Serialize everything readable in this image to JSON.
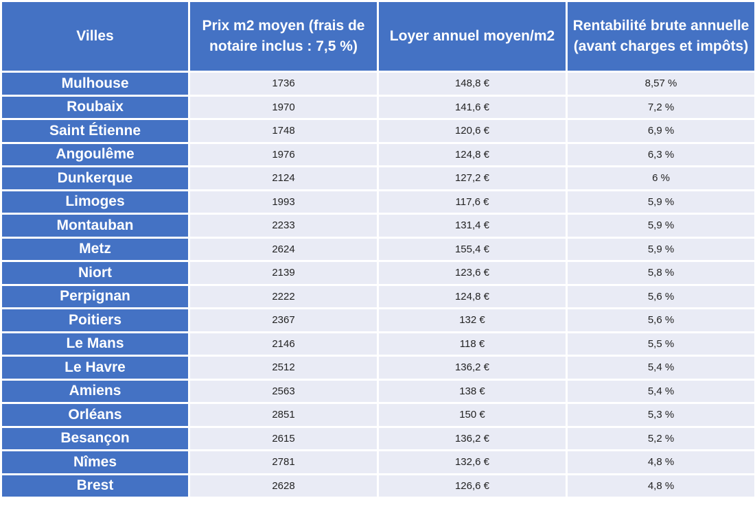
{
  "headers": [
    "Villes",
    "Prix m2 moyen (frais de notaire inclus : 7,5 %)",
    "Loyer annuel moyen/m2",
    "Rentabilité brute annuelle (avant charges et impôts)"
  ],
  "rows": [
    {
      "city": "Mulhouse",
      "price": "1736",
      "rent": "148,8 €",
      "yield": "8,57 %"
    },
    {
      "city": "Roubaix",
      "price": "1970",
      "rent": "141,6 €",
      "yield": "7,2 %"
    },
    {
      "city": "Saint Étienne",
      "price": "1748",
      "rent": "120,6 €",
      "yield": "6,9 %"
    },
    {
      "city": "Angoulême",
      "price": "1976",
      "rent": "124,8 €",
      "yield": "6,3 %"
    },
    {
      "city": "Dunkerque",
      "price": "2124",
      "rent": "127,2 €",
      "yield": "6 %"
    },
    {
      "city": "Limoges",
      "price": "1993",
      "rent": "117,6 €",
      "yield": "5,9 %"
    },
    {
      "city": "Montauban",
      "price": "2233",
      "rent": "131,4 €",
      "yield": "5,9 %"
    },
    {
      "city": "Metz",
      "price": "2624",
      "rent": "155,4 €",
      "yield": "5,9 %"
    },
    {
      "city": "Niort",
      "price": "2139",
      "rent": "123,6 €",
      "yield": "5,8 %"
    },
    {
      "city": "Perpignan",
      "price": "2222",
      "rent": "124,8 €",
      "yield": "5,6 %"
    },
    {
      "city": "Poitiers",
      "price": "2367",
      "rent": "132 €",
      "yield": "5,6 %"
    },
    {
      "city": "Le Mans",
      "price": "2146",
      "rent": "118 €",
      "yield": "5,5 %"
    },
    {
      "city": "Le Havre",
      "price": "2512",
      "rent": "136,2 €",
      "yield": "5,4 %"
    },
    {
      "city": "Amiens",
      "price": "2563",
      "rent": "138 €",
      "yield": "5,4 %"
    },
    {
      "city": "Orléans",
      "price": "2851",
      "rent": "150 €",
      "yield": "5,3 %"
    },
    {
      "city": "Besançon",
      "price": "2615",
      "rent": "136,2 €",
      "yield": "5,2 %"
    },
    {
      "city": "Nîmes",
      "price": "2781",
      "rent": "132,6 €",
      "yield": "4,8 %"
    },
    {
      "city": "Brest",
      "price": "2628",
      "rent": "126,6 €",
      "yield": "4,8 %"
    }
  ],
  "colors": {
    "header_bg": "#4472c4",
    "header_text": "#ffffff",
    "cell_bg": "#e9ebf5",
    "cell_text": "#222222"
  }
}
